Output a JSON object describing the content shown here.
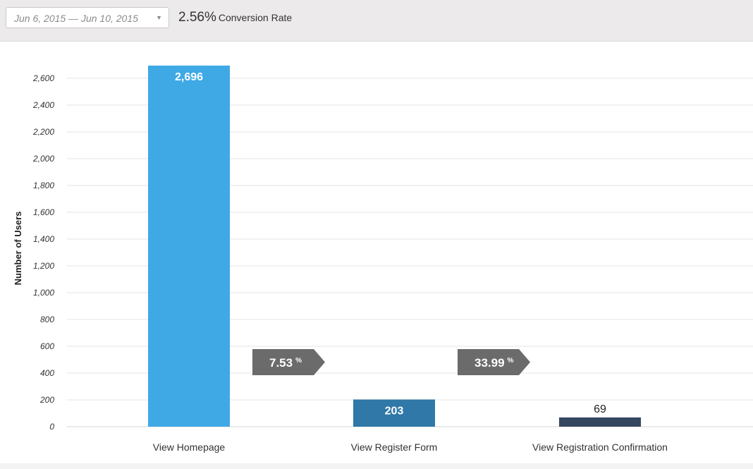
{
  "header": {
    "date_range": "Jun 6, 2015 — Jun 10, 2015",
    "caret_icon": "chevron-down-icon",
    "conversion_value": "2.56%",
    "conversion_label": "Conversion Rate"
  },
  "colors": {
    "bar_1": "#3fa9e6",
    "bar_2": "#2f78a8",
    "bar_3": "#34475f",
    "arrow": "#6b6b6b",
    "grid": "#e6e6e6"
  },
  "chart_data": {
    "type": "bar",
    "categories": [
      "View Homepage",
      "View Register Form",
      "View Registration Confirmation"
    ],
    "values": [
      2696,
      203,
      69
    ],
    "value_labels": [
      "2,696",
      "203",
      "69"
    ],
    "ylabel": "Number of Users",
    "ylim": [
      0,
      2600
    ],
    "yticks": [
      0,
      200,
      400,
      600,
      800,
      1000,
      1200,
      1400,
      1600,
      1800,
      2000,
      2200,
      2400,
      2600
    ],
    "ytick_labels": [
      "0",
      "200",
      "400",
      "600",
      "800",
      "1,000",
      "1,200",
      "1,400",
      "1,600",
      "1,800",
      "2,000",
      "2,200",
      "2,400",
      "2,600"
    ],
    "step_rates": [
      {
        "value": "7.53",
        "unit": "%"
      },
      {
        "value": "33.99",
        "unit": "%"
      }
    ],
    "grid": true
  }
}
